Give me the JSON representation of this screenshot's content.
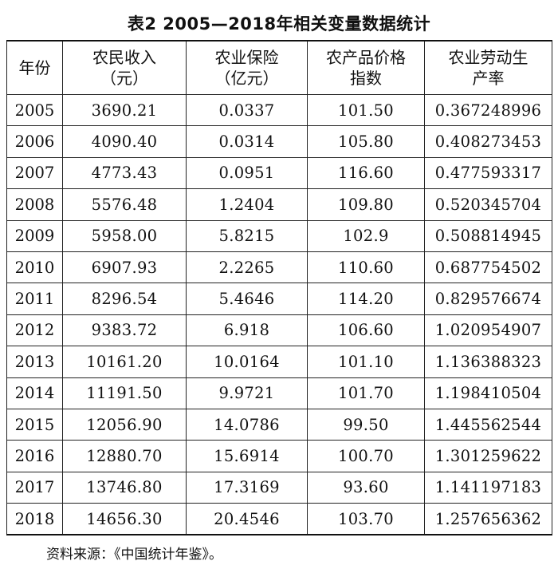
{
  "title": "表2 2005—2018年相关变量数据统计",
  "table": {
    "headers": [
      [
        "年份"
      ],
      [
        "农民收入",
        "（元）"
      ],
      [
        "农业保险",
        "（亿元）"
      ],
      [
        "农产品价格",
        "指数"
      ],
      [
        "农业劳动生",
        "产率"
      ]
    ],
    "rows": [
      [
        "2005",
        "3690.21",
        "0.0337",
        "101.50",
        "0.367248996"
      ],
      [
        "2006",
        "4090.40",
        "0.0314",
        "105.80",
        "0.408273453"
      ],
      [
        "2007",
        "4773.43",
        "0.0951",
        "116.60",
        "0.477593317"
      ],
      [
        "2008",
        "5576.48",
        "1.2404",
        "109.80",
        "0.520345704"
      ],
      [
        "2009",
        "5958.00",
        "5.8215",
        "102.9",
        "0.508814945"
      ],
      [
        "2010",
        "6907.93",
        "2.2265",
        "110.60",
        "0.687754502"
      ],
      [
        "2011",
        "8296.54",
        "5.4646",
        "114.20",
        "0.829576674"
      ],
      [
        "2012",
        "9383.72",
        "6.918",
        "106.60",
        "1.020954907"
      ],
      [
        "2013",
        "10161.20",
        "10.0164",
        "101.10",
        "1.136388323"
      ],
      [
        "2014",
        "11191.50",
        "9.9721",
        "101.70",
        "1.198410504"
      ],
      [
        "2015",
        "12056.90",
        "14.0786",
        "99.50",
        "1.445562544"
      ],
      [
        "2016",
        "12880.70",
        "15.6914",
        "100.70",
        "1.301259622"
      ],
      [
        "2017",
        "13746.80",
        "17.3169",
        "93.60",
        "1.141197183"
      ],
      [
        "2018",
        "14656.30",
        "20.4546",
        "103.70",
        "1.257656362"
      ]
    ]
  },
  "source_note": "资料来源：《中国统计年鉴》。"
}
